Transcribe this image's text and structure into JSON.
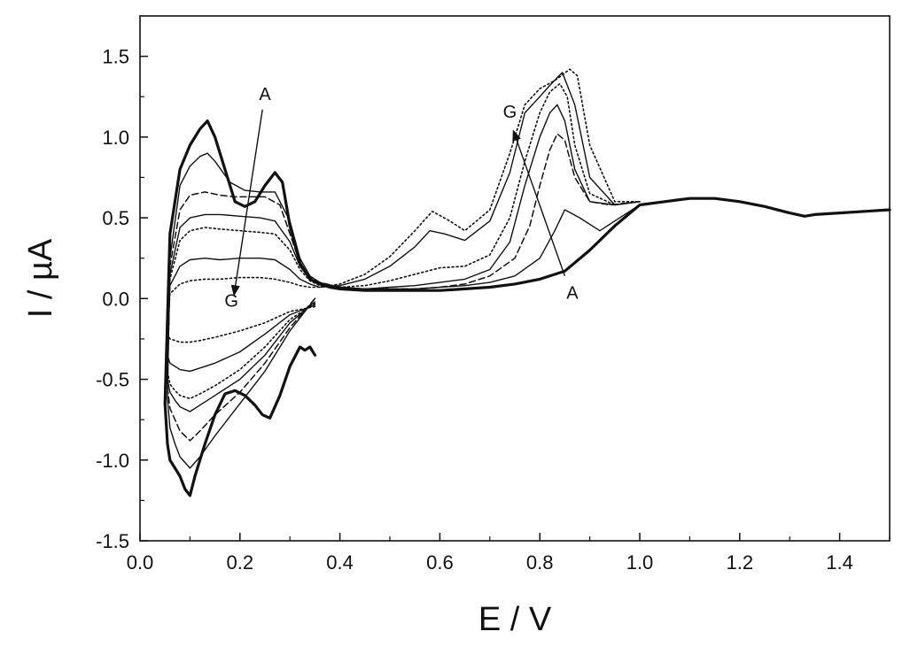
{
  "chart_data": {
    "type": "line",
    "title": "",
    "xlabel": "E / V",
    "ylabel": "I / µA",
    "xlim": [
      0.0,
      1.5
    ],
    "ylim": [
      -1.5,
      1.75
    ],
    "xticks": [
      0.0,
      0.2,
      0.4,
      0.6,
      0.8,
      1.0,
      1.2,
      1.4
    ],
    "yticks": [
      -1.5,
      -1.0,
      -0.5,
      0.0,
      0.5,
      1.0,
      1.5
    ],
    "xtick_labels": [
      "0.0",
      "0.2",
      "0.4",
      "0.6",
      "0.8",
      "1.0",
      "1.2",
      "1.4"
    ],
    "ytick_labels": [
      "-1.5",
      "-1.0",
      "-0.5",
      "0.0",
      "0.5",
      "1.0",
      "1.5"
    ],
    "grid": false,
    "legend": "none",
    "series": [
      {
        "style": "thick-solid",
        "x": [
          0.35,
          0.34,
          0.33,
          0.32,
          0.3,
          0.28,
          0.26,
          0.245,
          0.23,
          0.21,
          0.19,
          0.17,
          0.15,
          0.13,
          0.11,
          0.1,
          0.09,
          0.08,
          0.07,
          0.06,
          0.055,
          0.05,
          0.06,
          0.08,
          0.1,
          0.12,
          0.135,
          0.15,
          0.17,
          0.19,
          0.21,
          0.23,
          0.25,
          0.27,
          0.285,
          0.3,
          0.32,
          0.34,
          0.36,
          0.38,
          0.4,
          0.45,
          0.5,
          0.55,
          0.6,
          0.65,
          0.7,
          0.75,
          0.8,
          0.85,
          0.9,
          0.95,
          1.0,
          1.05,
          1.1,
          1.15,
          1.2,
          1.25,
          1.3,
          1.33,
          1.35,
          1.4,
          1.45,
          1.5
        ],
        "y": [
          -0.35,
          -0.3,
          -0.32,
          -0.3,
          -0.42,
          -0.6,
          -0.74,
          -0.72,
          -0.66,
          -0.6,
          -0.57,
          -0.59,
          -0.72,
          -0.9,
          -1.1,
          -1.22,
          -1.18,
          -1.1,
          -1.05,
          -1.0,
          -0.9,
          -0.65,
          0.4,
          0.8,
          0.95,
          1.05,
          1.1,
          1.0,
          0.8,
          0.6,
          0.57,
          0.6,
          0.7,
          0.78,
          0.72,
          0.45,
          0.22,
          0.12,
          0.09,
          0.07,
          0.06,
          0.05,
          0.05,
          0.05,
          0.05,
          0.06,
          0.07,
          0.09,
          0.12,
          0.17,
          0.3,
          0.45,
          0.58,
          0.6,
          0.62,
          0.62,
          0.6,
          0.57,
          0.53,
          0.51,
          0.52,
          0.53,
          0.54,
          0.55
        ]
      },
      {
        "style": "thin-solid",
        "x": [
          0.35,
          0.3,
          0.25,
          0.2,
          0.15,
          0.12,
          0.1,
          0.08,
          0.07,
          0.06,
          0.055,
          0.06,
          0.08,
          0.1,
          0.12,
          0.135,
          0.15,
          0.18,
          0.21,
          0.24,
          0.27,
          0.3,
          0.32,
          0.34,
          0.36,
          0.38,
          0.4,
          0.45,
          0.5,
          0.55,
          0.6,
          0.65,
          0.7,
          0.75,
          0.8,
          0.83,
          0.85,
          0.88,
          0.92,
          0.96,
          1.0
        ],
        "y": [
          0.0,
          -0.2,
          -0.45,
          -0.65,
          -0.85,
          -0.98,
          -1.05,
          -0.98,
          -0.9,
          -0.8,
          -0.62,
          0.25,
          0.7,
          0.82,
          0.88,
          0.9,
          0.85,
          0.72,
          0.67,
          0.66,
          0.66,
          0.48,
          0.25,
          0.14,
          0.1,
          0.08,
          0.07,
          0.06,
          0.06,
          0.06,
          0.07,
          0.08,
          0.1,
          0.14,
          0.25,
          0.42,
          0.55,
          0.5,
          0.42,
          0.5,
          0.58
        ]
      },
      {
        "style": "dashed",
        "x": [
          0.35,
          0.3,
          0.25,
          0.2,
          0.15,
          0.12,
          0.1,
          0.08,
          0.07,
          0.06,
          0.055,
          0.06,
          0.08,
          0.1,
          0.13,
          0.16,
          0.19,
          0.22,
          0.25,
          0.28,
          0.3,
          0.32,
          0.34,
          0.36,
          0.4,
          0.45,
          0.5,
          0.55,
          0.6,
          0.65,
          0.7,
          0.75,
          0.78,
          0.8,
          0.82,
          0.835,
          0.85,
          0.87,
          0.9,
          0.94,
          1.0
        ],
        "y": [
          0.0,
          -0.18,
          -0.4,
          -0.58,
          -0.72,
          -0.82,
          -0.88,
          -0.82,
          -0.75,
          -0.68,
          -0.55,
          0.2,
          0.55,
          0.64,
          0.66,
          0.64,
          0.63,
          0.63,
          0.63,
          0.58,
          0.4,
          0.22,
          0.13,
          0.1,
          0.07,
          0.06,
          0.06,
          0.06,
          0.07,
          0.09,
          0.14,
          0.25,
          0.45,
          0.7,
          0.92,
          1.02,
          0.98,
          0.75,
          0.6,
          0.58,
          0.6
        ]
      },
      {
        "style": "thin-solid",
        "x": [
          0.35,
          0.3,
          0.25,
          0.2,
          0.15,
          0.12,
          0.1,
          0.08,
          0.07,
          0.06,
          0.055,
          0.06,
          0.08,
          0.1,
          0.13,
          0.16,
          0.2,
          0.24,
          0.27,
          0.3,
          0.32,
          0.34,
          0.36,
          0.4,
          0.45,
          0.5,
          0.55,
          0.6,
          0.65,
          0.7,
          0.74,
          0.77,
          0.8,
          0.82,
          0.835,
          0.85,
          0.87,
          0.9,
          0.95,
          1.0
        ],
        "y": [
          -0.02,
          -0.15,
          -0.35,
          -0.5,
          -0.6,
          -0.66,
          -0.7,
          -0.67,
          -0.63,
          -0.58,
          -0.5,
          0.15,
          0.44,
          0.5,
          0.52,
          0.52,
          0.51,
          0.5,
          0.48,
          0.35,
          0.2,
          0.12,
          0.09,
          0.07,
          0.06,
          0.07,
          0.08,
          0.1,
          0.12,
          0.18,
          0.35,
          0.7,
          1.0,
          1.15,
          1.2,
          1.1,
          0.8,
          0.6,
          0.58,
          0.6
        ]
      },
      {
        "style": "dotted",
        "x": [
          0.35,
          0.3,
          0.25,
          0.2,
          0.15,
          0.12,
          0.1,
          0.08,
          0.07,
          0.06,
          0.055,
          0.06,
          0.08,
          0.1,
          0.13,
          0.16,
          0.2,
          0.24,
          0.27,
          0.3,
          0.32,
          0.34,
          0.36,
          0.4,
          0.45,
          0.5,
          0.55,
          0.6,
          0.65,
          0.7,
          0.74,
          0.77,
          0.8,
          0.82,
          0.84,
          0.855,
          0.87,
          0.9,
          0.95,
          1.0
        ],
        "y": [
          -0.03,
          -0.13,
          -0.3,
          -0.44,
          -0.54,
          -0.59,
          -0.62,
          -0.6,
          -0.57,
          -0.53,
          -0.45,
          0.12,
          0.36,
          0.42,
          0.44,
          0.43,
          0.42,
          0.41,
          0.4,
          0.3,
          0.18,
          0.11,
          0.08,
          0.07,
          0.08,
          0.11,
          0.15,
          0.19,
          0.2,
          0.27,
          0.5,
          0.85,
          1.15,
          1.28,
          1.33,
          1.25,
          0.95,
          0.65,
          0.58,
          0.6
        ]
      },
      {
        "style": "thin-solid",
        "x": [
          0.35,
          0.3,
          0.25,
          0.2,
          0.15,
          0.12,
          0.1,
          0.08,
          0.07,
          0.06,
          0.055,
          0.06,
          0.08,
          0.1,
          0.13,
          0.16,
          0.2,
          0.24,
          0.27,
          0.3,
          0.32,
          0.34,
          0.36,
          0.4,
          0.45,
          0.5,
          0.55,
          0.58,
          0.61,
          0.65,
          0.7,
          0.74,
          0.77,
          0.8,
          0.82,
          0.845,
          0.87,
          0.9,
          0.95,
          1.0
        ],
        "y": [
          -0.04,
          -0.1,
          -0.22,
          -0.33,
          -0.4,
          -0.43,
          -0.45,
          -0.44,
          -0.42,
          -0.4,
          -0.35,
          0.08,
          0.2,
          0.24,
          0.25,
          0.24,
          0.25,
          0.25,
          0.24,
          0.18,
          0.12,
          0.09,
          0.07,
          0.08,
          0.12,
          0.2,
          0.32,
          0.42,
          0.4,
          0.36,
          0.48,
          0.78,
          1.15,
          1.25,
          1.32,
          1.4,
          1.2,
          0.75,
          0.58,
          0.6
        ]
      },
      {
        "style": "dotted",
        "x": [
          0.35,
          0.3,
          0.25,
          0.2,
          0.15,
          0.12,
          0.1,
          0.08,
          0.07,
          0.06,
          0.055,
          0.06,
          0.08,
          0.1,
          0.13,
          0.16,
          0.2,
          0.24,
          0.27,
          0.3,
          0.32,
          0.34,
          0.36,
          0.4,
          0.45,
          0.5,
          0.55,
          0.585,
          0.62,
          0.65,
          0.7,
          0.74,
          0.77,
          0.8,
          0.83,
          0.86,
          0.875,
          0.9,
          0.95,
          1.0
        ],
        "y": [
          -0.05,
          -0.08,
          -0.15,
          -0.2,
          -0.24,
          -0.26,
          -0.27,
          -0.27,
          -0.26,
          -0.25,
          -0.22,
          0.03,
          0.09,
          0.11,
          0.12,
          0.12,
          0.13,
          0.13,
          0.12,
          0.1,
          0.08,
          0.07,
          0.07,
          0.09,
          0.15,
          0.26,
          0.42,
          0.54,
          0.48,
          0.42,
          0.55,
          0.9,
          1.2,
          1.3,
          1.35,
          1.42,
          1.38,
          0.95,
          0.6,
          0.6
        ]
      }
    ],
    "annotations": [
      {
        "text": "A",
        "x": 0.25,
        "y": 1.23
      },
      {
        "text": "G",
        "x": 0.183,
        "y": -0.05
      },
      {
        "text": "G",
        "x": 0.74,
        "y": 1.12
      },
      {
        "text": "A",
        "x": 0.865,
        "y": 0.0
      }
    ],
    "arrows": [
      {
        "from": [
          0.245,
          1.17
        ],
        "to": [
          0.188,
          0.02
        ]
      },
      {
        "from": [
          0.85,
          0.14
        ],
        "to": [
          0.747,
          1.04
        ]
      }
    ]
  }
}
